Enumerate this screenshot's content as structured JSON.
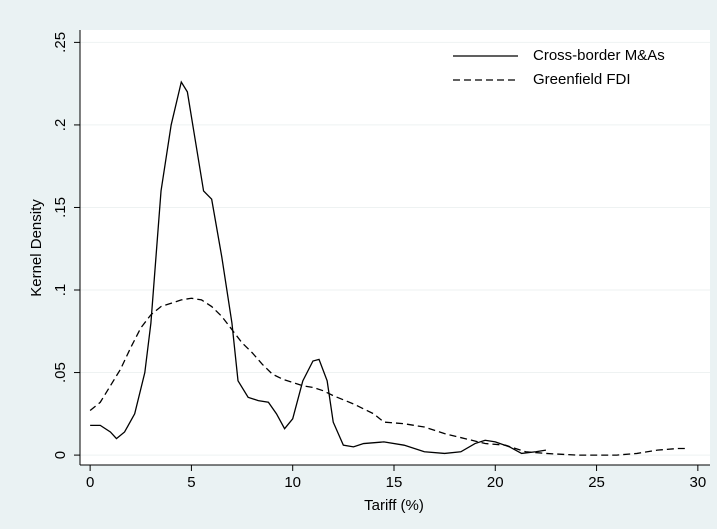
{
  "chart_data": {
    "type": "line",
    "ylabel": "Kernel Density",
    "xlabel": "Tariff (%)",
    "xlim": [
      -0.5,
      30.6
    ],
    "ylim": [
      -0.006,
      0.2575
    ],
    "xticks": [
      0,
      5,
      10,
      15,
      20,
      25,
      30
    ],
    "yticks": [
      0,
      {
        "value": 0.05,
        "label": ".05"
      },
      {
        "value": 0.1,
        "label": ".1"
      },
      {
        "value": 0.15,
        "label": ".15"
      },
      {
        "value": 0.2,
        "label": ".2"
      },
      {
        "value": 0.25,
        "label": ".25"
      }
    ],
    "grid": true,
    "legend": "top-right",
    "series": [
      {
        "name": "Cross-border M&As",
        "color": "#000000",
        "line_style": "solid",
        "x": [
          0,
          0.5,
          1,
          1.3,
          1.7,
          2.2,
          2.7,
          3,
          3.5,
          4,
          4.5,
          4.8,
          5.2,
          5.6,
          6,
          6.5,
          7,
          7.3,
          7.8,
          8.3,
          8.8,
          9.2,
          9.6,
          10,
          10.5,
          11,
          11.3,
          11.7,
          12,
          12.5,
          13,
          13.5,
          14.5,
          15.5,
          16.5,
          17.5,
          18.3,
          19,
          19.5,
          20,
          20.7,
          21.3,
          22,
          22.5
        ],
        "values": [
          0.018,
          0.018,
          0.014,
          0.01,
          0.014,
          0.025,
          0.05,
          0.08,
          0.16,
          0.2,
          0.226,
          0.22,
          0.19,
          0.16,
          0.155,
          0.12,
          0.08,
          0.045,
          0.035,
          0.033,
          0.032,
          0.025,
          0.016,
          0.022,
          0.045,
          0.057,
          0.058,
          0.045,
          0.02,
          0.006,
          0.005,
          0.007,
          0.008,
          0.006,
          0.002,
          0.001,
          0.002,
          0.007,
          0.009,
          0.008,
          0.005,
          0.001,
          0.002,
          0.003
        ]
      },
      {
        "name": "Greenfield FDI",
        "color": "#000000",
        "line_style": "dashed",
        "x": [
          0,
          0.5,
          1,
          1.5,
          2,
          2.5,
          3,
          3.5,
          4,
          4.5,
          5,
          5.5,
          6,
          6.5,
          7,
          7.5,
          8,
          8.5,
          9,
          9.5,
          10,
          10.5,
          11,
          11.5,
          12,
          13,
          14,
          14.5,
          15.5,
          16.5,
          17.5,
          18.5,
          19.5,
          20.5,
          21.5,
          22.5,
          24,
          26,
          27,
          28,
          29,
          29.5
        ],
        "values": [
          0.027,
          0.032,
          0.042,
          0.052,
          0.065,
          0.077,
          0.085,
          0.09,
          0.092,
          0.094,
          0.095,
          0.094,
          0.09,
          0.084,
          0.076,
          0.068,
          0.062,
          0.055,
          0.049,
          0.046,
          0.044,
          0.042,
          0.041,
          0.039,
          0.036,
          0.031,
          0.025,
          0.02,
          0.019,
          0.017,
          0.013,
          0.01,
          0.007,
          0.006,
          0.002,
          0.001,
          0,
          0,
          0.001,
          0.003,
          0.004,
          0.004
        ]
      }
    ]
  }
}
